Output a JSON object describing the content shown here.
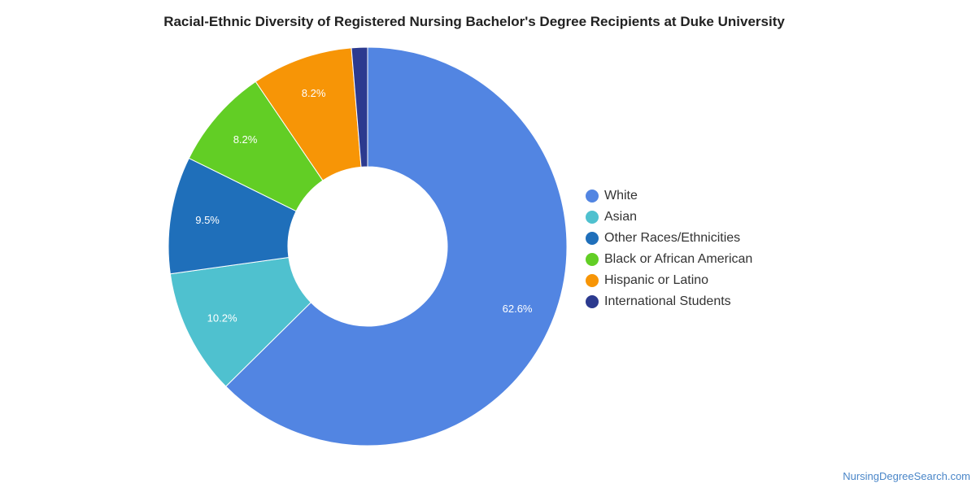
{
  "chart_data": {
    "type": "pie",
    "title": "Racial-Ethnic Diversity of Registered Nursing Bachelor's Degree Recipients at Duke University",
    "donut": true,
    "legend_position": "right",
    "slices": [
      {
        "name": "White",
        "value": 62.6,
        "label": "62.6%",
        "color": "#5285e2"
      },
      {
        "name": "Asian",
        "value": 10.2,
        "label": "10.2%",
        "color": "#4fc1cf"
      },
      {
        "name": "Other Races/Ethnicities",
        "value": 9.5,
        "label": "9.5%",
        "color": "#1f6fba"
      },
      {
        "name": "Black or African American",
        "value": 8.2,
        "label": "8.2%",
        "color": "#62ce25"
      },
      {
        "name": "Hispanic or Latino",
        "value": 8.2,
        "label": "8.2%",
        "color": "#f79506"
      },
      {
        "name": "International Students",
        "value": 1.3,
        "label": "",
        "color": "#2c3a8f"
      }
    ]
  },
  "source": "NursingDegreeSearch.com"
}
